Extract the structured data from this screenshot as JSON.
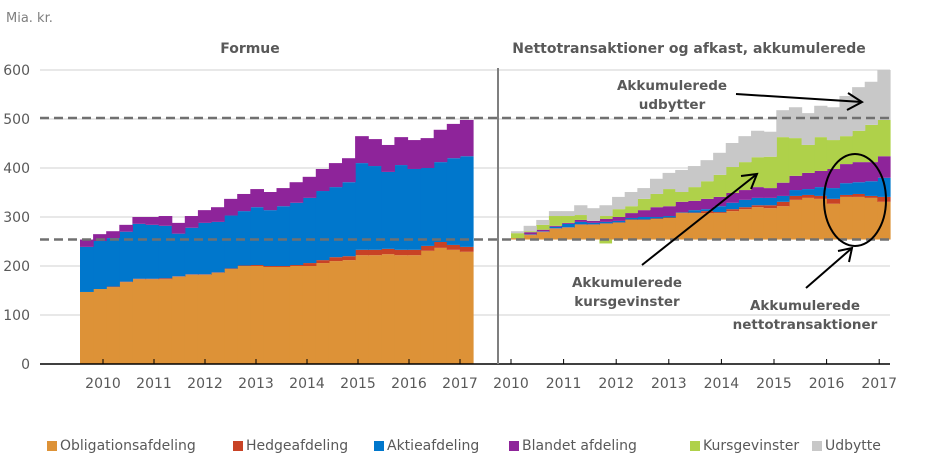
{
  "chart_data": {
    "type": "area",
    "unit_label": "Mia. kr.",
    "y_ticks": [
      "0",
      "100",
      "200",
      "300",
      "400",
      "500",
      "600"
    ],
    "ylim": [
      0,
      600
    ],
    "grid": true,
    "reference_lines": [
      254,
      502
    ],
    "series_meta": [
      {
        "key": "obligation",
        "name": "Obligationsafdeling",
        "color": "#DD9237"
      },
      {
        "key": "hedge",
        "name": "Hedgeafdeling",
        "color": "#C84225"
      },
      {
        "key": "aktie",
        "name": "Aktieafdeling",
        "color": "#0077CC"
      },
      {
        "key": "blandet",
        "name": "Blandet afdeling",
        "color": "#8E249A"
      },
      {
        "key": "kurs",
        "name": "Kursgevinster",
        "color": "#AFD14A"
      },
      {
        "key": "udbytte",
        "name": "Udbytte",
        "color": "#C8C8C8"
      }
    ],
    "panels": [
      {
        "title": "Formue",
        "x_ticks": [
          "2010",
          "2011",
          "2012",
          "2013",
          "2014",
          "2015",
          "2016",
          "2017"
        ],
        "base": 0,
        "stack_order": [
          "obligation",
          "hedge",
          "aktie",
          "blandet"
        ],
        "cumulative_tops": [
          [
            147,
            147,
            239,
            254
          ],
          [
            153,
            153,
            251,
            265
          ],
          [
            157,
            158,
            257,
            271
          ],
          [
            167,
            168,
            270,
            284
          ],
          [
            173,
            174,
            286,
            300
          ],
          [
            173,
            174,
            284,
            300
          ],
          [
            173,
            175,
            282,
            302
          ],
          [
            178,
            179,
            266,
            288
          ],
          [
            182,
            183,
            278,
            302
          ],
          [
            182,
            183,
            288,
            314
          ],
          [
            186,
            187,
            290,
            320
          ],
          [
            194,
            195,
            303,
            337
          ],
          [
            200,
            201,
            312,
            347
          ],
          [
            200,
            202,
            320,
            357
          ],
          [
            198,
            200,
            314,
            351
          ],
          [
            198,
            200,
            322,
            359
          ],
          [
            200,
            202,
            329,
            371
          ],
          [
            200,
            206,
            339,
            382
          ],
          [
            206,
            212,
            353,
            398
          ],
          [
            210,
            218,
            361,
            410
          ],
          [
            212,
            220,
            371,
            420
          ],
          [
            222,
            233,
            410,
            465
          ],
          [
            222,
            233,
            404,
            459
          ],
          [
            224,
            235,
            392,
            447
          ],
          [
            222,
            233,
            406,
            463
          ],
          [
            222,
            233,
            398,
            457
          ],
          [
            231,
            241,
            400,
            461
          ],
          [
            237,
            249,
            412,
            478
          ],
          [
            233,
            243,
            420,
            490
          ],
          [
            229,
            239,
            424,
            498
          ]
        ]
      },
      {
        "title": "Nettotransaktioner og afkast, akkumulerede",
        "x_ticks": [
          "2010",
          "2011",
          "2012",
          "2013",
          "2014",
          "2015",
          "2016",
          "2017"
        ],
        "base": 254,
        "stack_order": [
          "obligation",
          "hedge",
          "aktie",
          "blandet",
          "kurs",
          "udbytte"
        ],
        "cumulative_tops": [
          [
            257,
            257,
            257,
            257,
            267,
            271
          ],
          [
            263,
            264,
            265,
            269,
            271,
            282
          ],
          [
            269,
            270,
            271,
            274,
            284,
            294
          ],
          [
            276,
            277,
            280,
            282,
            302,
            312
          ],
          [
            278,
            279,
            286,
            288,
            302,
            312
          ],
          [
            284,
            285,
            290,
            294,
            304,
            324
          ],
          [
            284,
            285,
            288,
            292,
            292,
            318
          ],
          [
            286,
            287,
            290,
            296,
            302,
            324
          ],
          [
            288,
            289,
            292,
            300,
            316,
            341
          ],
          [
            294,
            295,
            298,
            308,
            322,
            351
          ],
          [
            294,
            295,
            300,
            314,
            337,
            359
          ],
          [
            296,
            297,
            300,
            320,
            347,
            378
          ],
          [
            298,
            299,
            302,
            322,
            357,
            390
          ],
          [
            308,
            309,
            310,
            331,
            351,
            396
          ],
          [
            308,
            309,
            314,
            333,
            361,
            404
          ],
          [
            308,
            312,
            316,
            337,
            373,
            416
          ],
          [
            308,
            310,
            322,
            341,
            386,
            431
          ],
          [
            312,
            316,
            329,
            349,
            402,
            451
          ],
          [
            316,
            320,
            335,
            355,
            412,
            465
          ],
          [
            320,
            324,
            339,
            361,
            422,
            476
          ],
          [
            318,
            324,
            339,
            359,
            423,
            474
          ],
          [
            322,
            331,
            343,
            370,
            463,
            518
          ],
          [
            335,
            343,
            355,
            384,
            461,
            524
          ],
          [
            339,
            345,
            357,
            390,
            447,
            512
          ],
          [
            337,
            343,
            361,
            394,
            463,
            527
          ],
          [
            327,
            337,
            359,
            398,
            457,
            524
          ],
          [
            341,
            345,
            369,
            408,
            465,
            547
          ],
          [
            341,
            347,
            371,
            412,
            476,
            565
          ],
          [
            339,
            343,
            373,
            412,
            488,
            576
          ],
          [
            331,
            341,
            380,
            424,
            498,
            600
          ]
        ],
        "negative_kursgevinster": {
          "step": 7,
          "value": -8
        }
      }
    ],
    "annotations": [
      {
        "key": "udbytter",
        "lines": [
          "Akkumulerede",
          "udbytter"
        ]
      },
      {
        "key": "kursgevinster",
        "lines": [
          "Akkumulerede",
          "kursgevinster"
        ]
      },
      {
        "key": "nettotransaktioner",
        "lines": [
          "Akkumulerede",
          "nettotransaktioner"
        ]
      }
    ]
  }
}
